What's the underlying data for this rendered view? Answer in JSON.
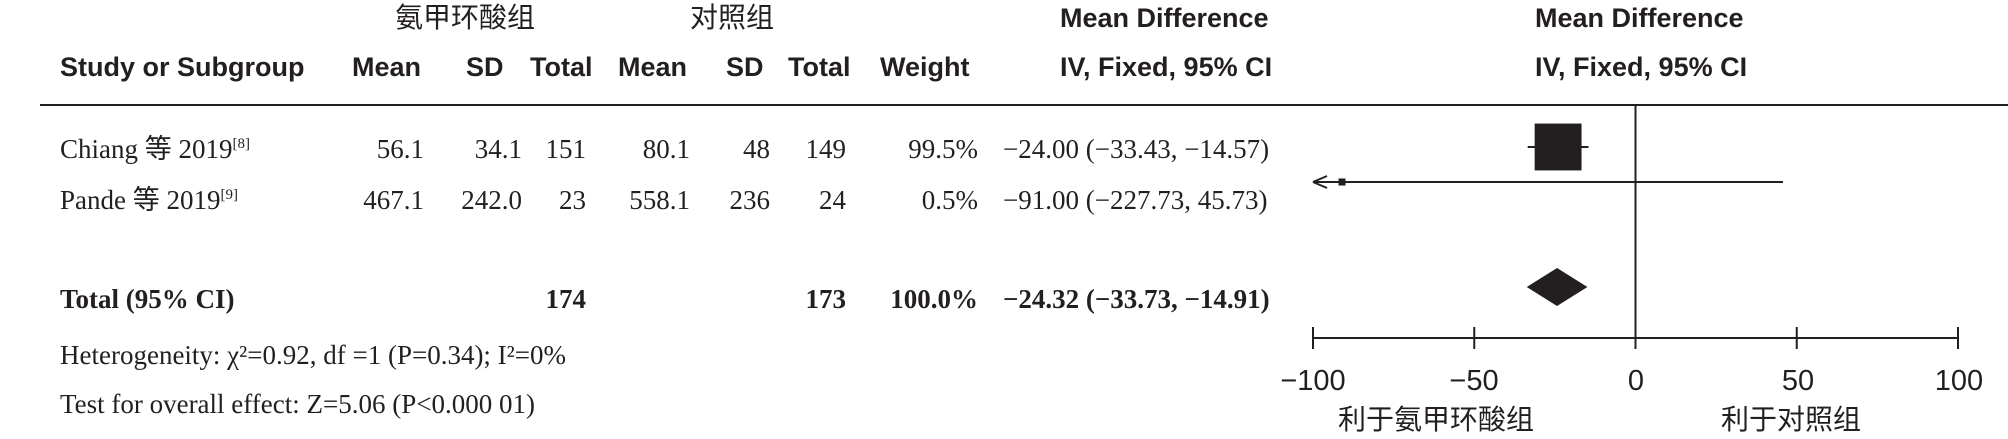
{
  "header": {
    "group_exp": "氨甲环酸组",
    "group_ctrl": "对照组",
    "study_col": "Study or Subgroup",
    "mean": "Mean",
    "sd": "SD",
    "total": "Total",
    "weight": "Weight",
    "md_title": "Mean Difference",
    "md_method": "IV, Fixed, 95% CI"
  },
  "studies": [
    {
      "name": "Chiang 等 2019",
      "ref": "[8]",
      "exp_mean": "56.1",
      "exp_sd": "34.1",
      "exp_total": "151",
      "ctrl_mean": "80.1",
      "ctrl_sd": "48",
      "ctrl_total": "149",
      "weight": "99.5%",
      "ci_text": "−24.00 (−33.43, −14.57)"
    },
    {
      "name": "Pande 等 2019",
      "ref": "[9]",
      "exp_mean": "467.1",
      "exp_sd": "242.0",
      "exp_total": "23",
      "ctrl_mean": "558.1",
      "ctrl_sd": "236",
      "ctrl_total": "24",
      "weight": "0.5%",
      "ci_text": "−91.00 (−227.73, 45.73)"
    }
  ],
  "total": {
    "label": "Total (95% CI)",
    "exp_total": "174",
    "ctrl_total": "173",
    "weight": "100.0%",
    "ci_text": "−24.32 (−33.73, −14.91)"
  },
  "footer": {
    "heterogeneity": "Heterogeneity: χ²=0.92, df =1 (P=0.34); I²=0%",
    "overall": "Test for overall effect: Z=5.06 (P<0.000 01)"
  },
  "axis": {
    "ticks": [
      "−100",
      "−50",
      "0",
      "50",
      "100"
    ],
    "favor_left": "利于氨甲环酸组",
    "favor_right": "利于对照组"
  },
  "chart_data": {
    "type": "scatter",
    "title": "",
    "xlabel": "",
    "ylabel": "",
    "xlim": [
      -100,
      100
    ],
    "x_ticks": [
      -100,
      -50,
      0,
      50,
      100
    ],
    "series": [
      {
        "name": "",
        "points": [
          {
            "study": "Chiang 等 2019",
            "estimate": -24.0,
            "lower": -33.43,
            "upper": -14.57,
            "weight": 99.5
          },
          {
            "study": "Pande 等 2019",
            "estimate": -91.0,
            "lower": -227.73,
            "upper": 45.73,
            "weight": 0.5
          }
        ]
      }
    ],
    "pooled": {
      "estimate": -24.32,
      "lower": -33.73,
      "upper": -14.91
    },
    "colors": {
      "ink": "#231f20"
    }
  }
}
